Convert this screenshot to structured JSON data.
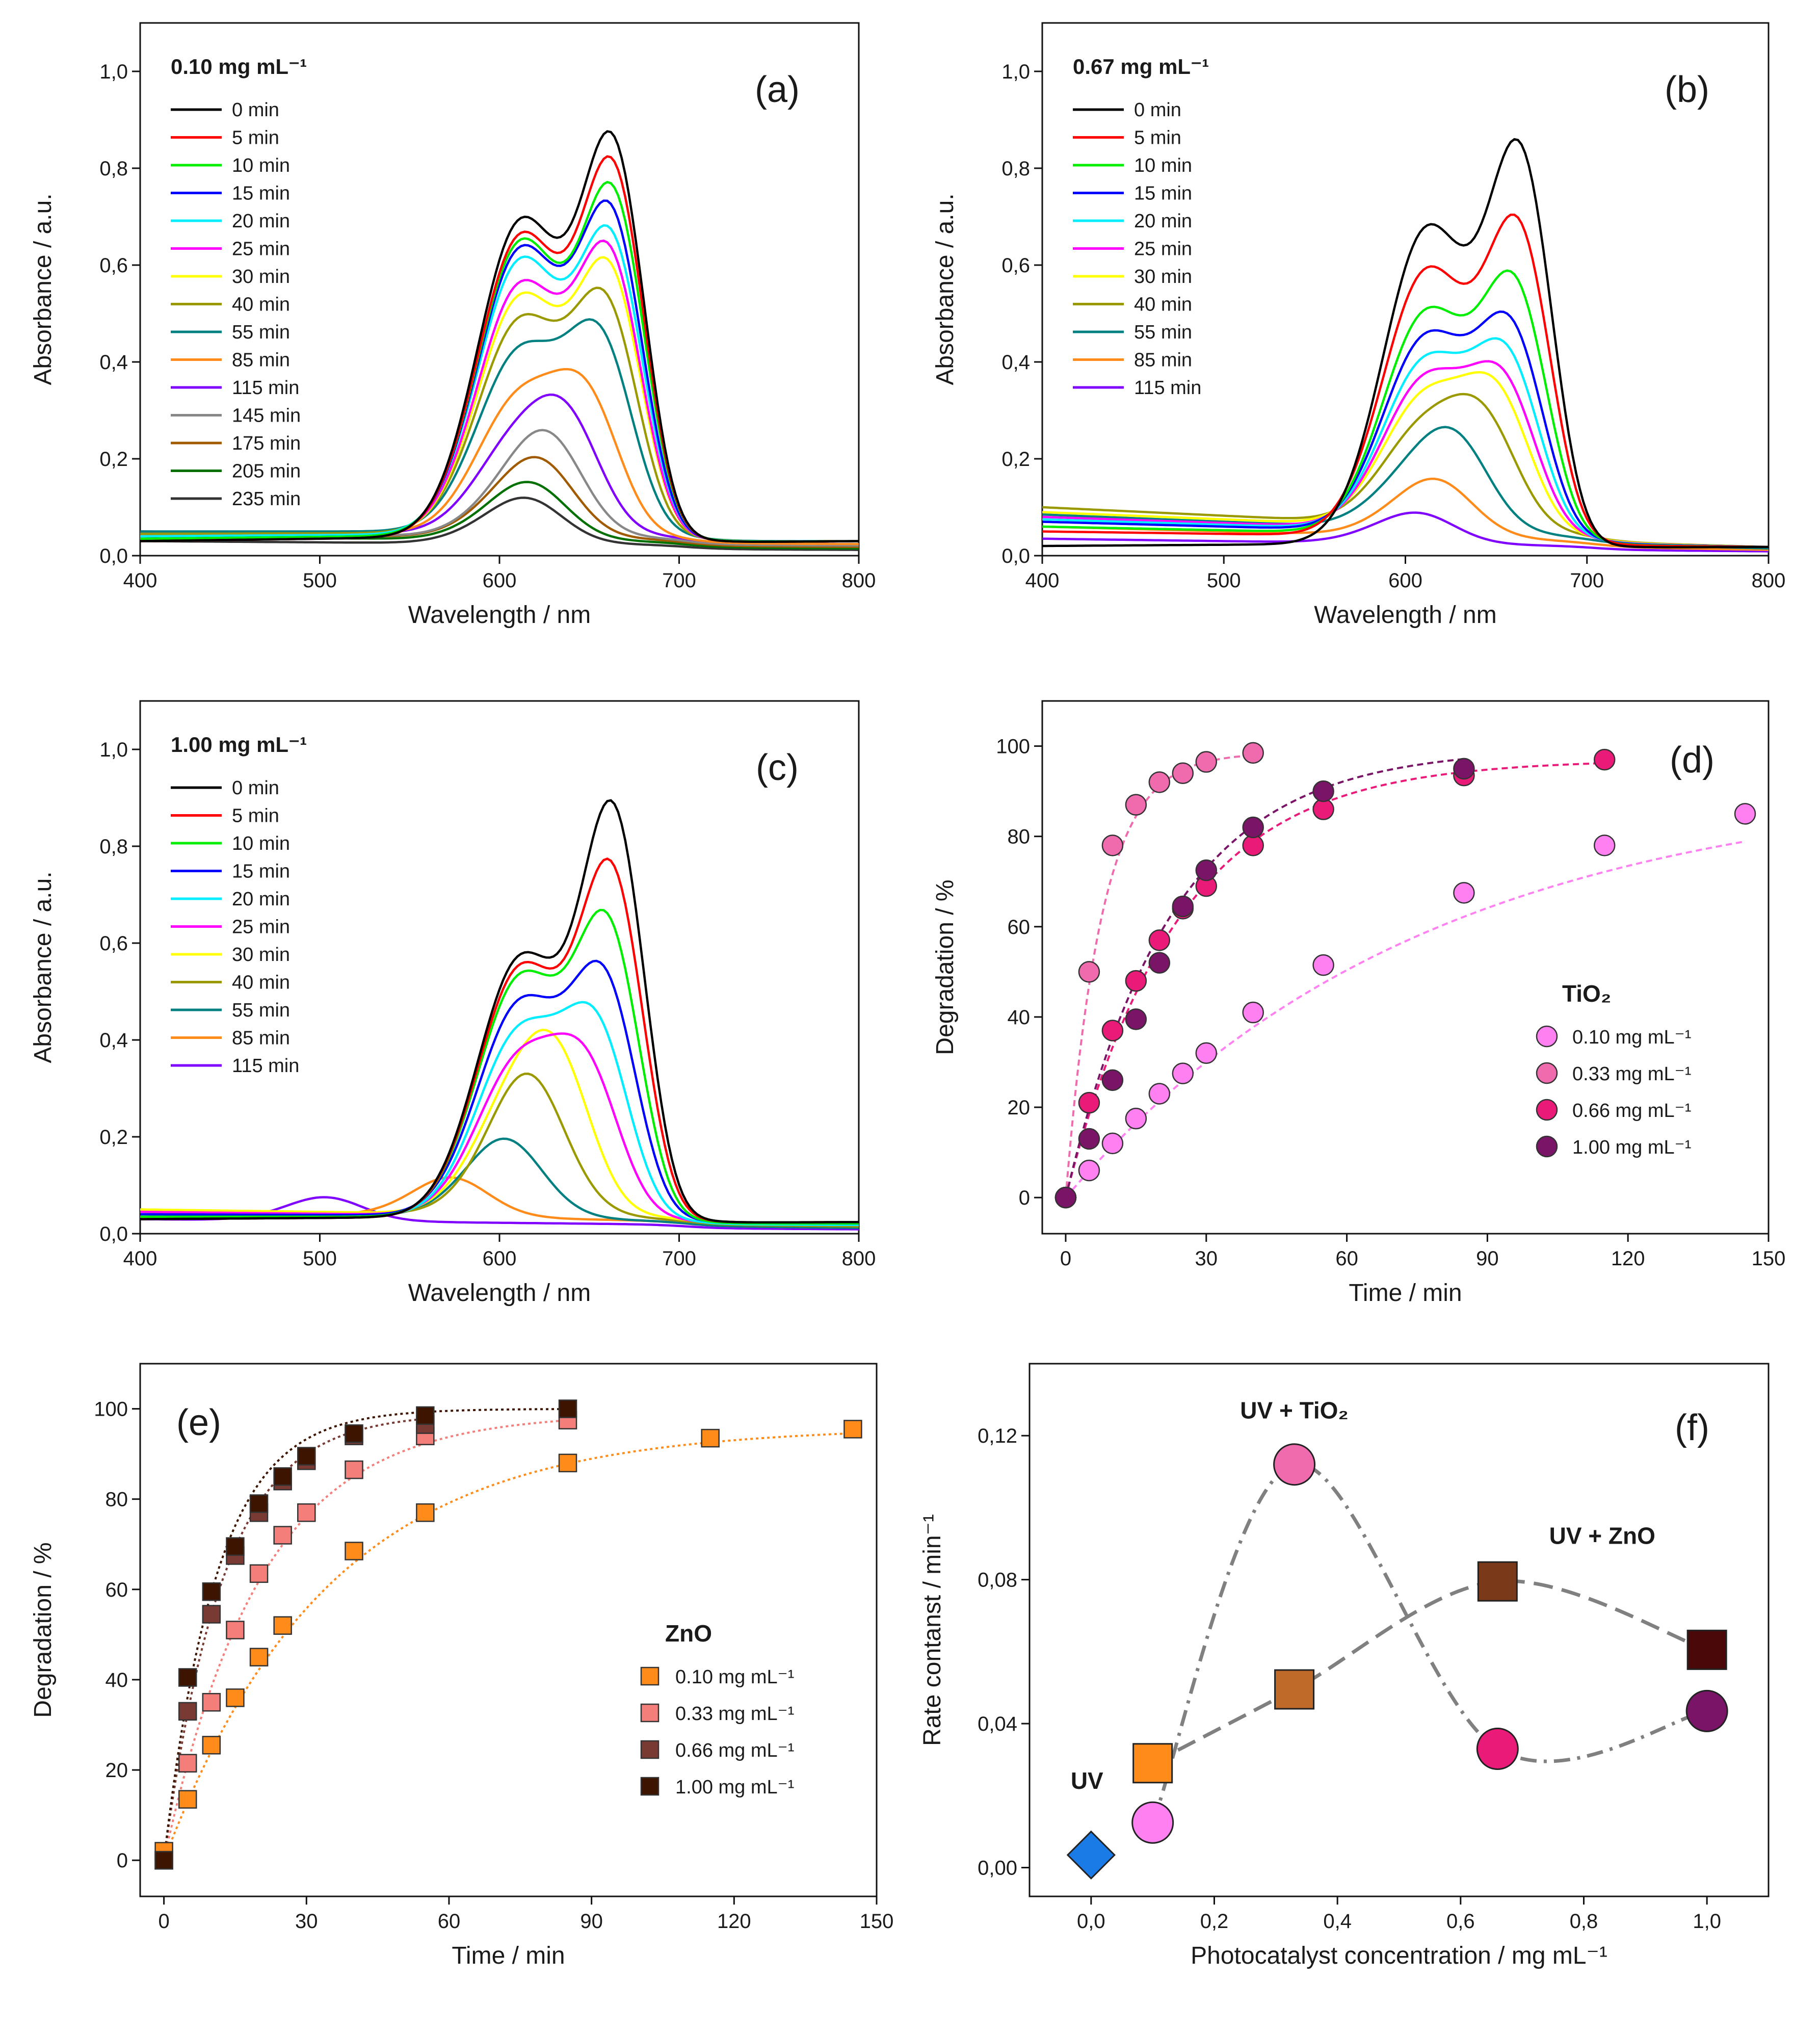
{
  "figure": {
    "background": "#ffffff"
  },
  "chart_data": [
    {
      "id": "a",
      "type": "line",
      "panel_label": "(a)",
      "title": "0.10 mg mL⁻¹",
      "xlabel": "Wavelength / nm",
      "ylabel": "Absorbance / a.u.",
      "xlim": [
        400,
        800
      ],
      "ylim": [
        0,
        1.1
      ],
      "xticks": [
        "400",
        "500",
        "600",
        "700",
        "800"
      ],
      "yticks": [
        "0,0",
        "0,2",
        "0,4",
        "0,6",
        "0,8",
        "1,0"
      ],
      "series": [
        {
          "name": "0 min",
          "color": "#000000",
          "p1": 0.645,
          "p2": 1.0,
          "c1": 612,
          "c2": 664,
          "base": 0.03,
          "tail": 0.05
        },
        {
          "name": "5 min",
          "color": "#ff0000",
          "p1": 0.615,
          "p2": 0.94,
          "c1": 612,
          "c2": 664,
          "base": 0.03,
          "tail": 0.05
        },
        {
          "name": "10 min",
          "color": "#00ee00",
          "p1": 0.6,
          "p2": 0.88,
          "c1": 612,
          "c2": 664,
          "base": 0.035,
          "tail": 0.05
        },
        {
          "name": "15 min",
          "color": "#0000ff",
          "p1": 0.585,
          "p2": 0.83,
          "c1": 612,
          "c2": 663,
          "base": 0.035,
          "tail": 0.05
        },
        {
          "name": "20 min",
          "color": "#00eeff",
          "p1": 0.56,
          "p2": 0.77,
          "c1": 612,
          "c2": 663,
          "base": 0.04,
          "tail": 0.05
        },
        {
          "name": "25 min",
          "color": "#ff00ff",
          "p1": 0.51,
          "p2": 0.72,
          "c1": 612,
          "c2": 662,
          "base": 0.04,
          "tail": 0.05
        },
        {
          "name": "30 min",
          "color": "#ffff00",
          "p1": 0.485,
          "p2": 0.68,
          "c1": 612,
          "c2": 662,
          "base": 0.04,
          "tail": 0.05
        },
        {
          "name": "40 min",
          "color": "#9a9a00",
          "p1": 0.435,
          "p2": 0.59,
          "c1": 612,
          "c2": 660,
          "base": 0.045,
          "tail": 0.05
        },
        {
          "name": "55 min",
          "color": "#008080",
          "p1": 0.37,
          "p2": 0.49,
          "c1": 612,
          "c2": 657,
          "base": 0.05,
          "tail": 0.05
        },
        {
          "name": "85 min",
          "color": "#ff8c1a",
          "p1": 0.28,
          "p2": 0.33,
          "c1": 612,
          "c2": 650,
          "base": 0.05,
          "tail": 0.04
        },
        {
          "name": "115 min",
          "color": "#8000ff",
          "p1": 0.2,
          "p2": 0.23,
          "c1": 612,
          "c2": 640,
          "base": 0.05,
          "tail": 0.04
        },
        {
          "name": "145 min",
          "color": "#888888",
          "p1": 0.13,
          "p2": 0.15,
          "c1": 615,
          "c2": 630,
          "base": 0.045,
          "tail": 0.035
        },
        {
          "name": "175 min",
          "color": "#a05a00",
          "p1": 0.1,
          "p2": 0.11,
          "c1": 612,
          "c2": 625,
          "base": 0.045,
          "tail": 0.03
        },
        {
          "name": "205 min",
          "color": "#007000",
          "p1": 0.075,
          "p2": 0.075,
          "c1": 610,
          "c2": 620,
          "base": 0.04,
          "tail": 0.025
        },
        {
          "name": "235 min",
          "color": "#333333",
          "p1": 0.058,
          "p2": 0.06,
          "c1": 608,
          "c2": 618,
          "base": 0.03,
          "tail": 0.02
        }
      ]
    },
    {
      "id": "b",
      "type": "line",
      "panel_label": "(b)",
      "title": "0.67 mg mL⁻¹",
      "xlabel": "Wavelength / nm",
      "ylabel": "Absorbance / a.u.",
      "xlim": [
        400,
        800
      ],
      "ylim": [
        0,
        1.1
      ],
      "xticks": [
        "400",
        "500",
        "600",
        "700",
        "800"
      ],
      "yticks": [
        "0,0",
        "0,2",
        "0,4",
        "0,6",
        "0,8",
        "1,0"
      ],
      "series": [
        {
          "name": "0 min",
          "color": "#000000",
          "p1": 0.645,
          "p2": 1.0,
          "c1": 612,
          "c2": 664,
          "base": 0.02,
          "tail": 0.03
        },
        {
          "name": "5 min",
          "color": "#ff0000",
          "p1": 0.545,
          "p2": 0.8,
          "c1": 612,
          "c2": 663,
          "base": 0.05,
          "tail": 0.03
        },
        {
          "name": "10 min",
          "color": "#00ee00",
          "p1": 0.455,
          "p2": 0.645,
          "c1": 612,
          "c2": 661,
          "base": 0.06,
          "tail": 0.03
        },
        {
          "name": "15 min",
          "color": "#0000ff",
          "p1": 0.4,
          "p2": 0.53,
          "c1": 612,
          "c2": 659,
          "base": 0.07,
          "tail": 0.03
        },
        {
          "name": "20 min",
          "color": "#00eeff",
          "p1": 0.35,
          "p2": 0.45,
          "c1": 612,
          "c2": 657,
          "base": 0.075,
          "tail": 0.03
        },
        {
          "name": "25 min",
          "color": "#ff00ff",
          "p1": 0.31,
          "p2": 0.38,
          "c1": 612,
          "c2": 655,
          "base": 0.08,
          "tail": 0.03
        },
        {
          "name": "30 min",
          "color": "#ffff00",
          "p1": 0.27,
          "p2": 0.33,
          "c1": 612,
          "c2": 652,
          "base": 0.09,
          "tail": 0.03
        },
        {
          "name": "40 min",
          "color": "#9a9a00",
          "p1": 0.205,
          "p2": 0.24,
          "c1": 612,
          "c2": 645,
          "base": 0.1,
          "tail": 0.03
        },
        {
          "name": "55 min",
          "color": "#008080",
          "p1": 0.13,
          "p2": 0.155,
          "c1": 610,
          "c2": 630,
          "base": 0.085,
          "tail": 0.025
        },
        {
          "name": "85 min",
          "color": "#ff8c1a",
          "p1": 0.075,
          "p2": 0.075,
          "c1": 610,
          "c2": 620,
          "base": 0.06,
          "tail": 0.02
        },
        {
          "name": "115 min",
          "color": "#8000ff",
          "p1": 0.04,
          "p2": 0.04,
          "c1": 600,
          "c2": 610,
          "base": 0.035,
          "tail": 0.015
        }
      ]
    },
    {
      "id": "c",
      "type": "line",
      "panel_label": "(c)",
      "title": "1.00 mg mL⁻¹",
      "xlabel": "Wavelength / nm",
      "ylabel": "Absorbance / a.u.",
      "xlim": [
        400,
        800
      ],
      "ylim": [
        0,
        1.1
      ],
      "xticks": [
        "400",
        "500",
        "600",
        "700",
        "800"
      ],
      "yticks": [
        "0,0",
        "0,2",
        "0,4",
        "0,6",
        "0,8",
        "1,0"
      ],
      "series": [
        {
          "name": "0 min",
          "color": "#000000",
          "p1": 0.53,
          "p2": 1.0,
          "c1": 612,
          "c2": 664,
          "base": 0.03,
          "tail": 0.04
        },
        {
          "name": "5 min",
          "color": "#ff0000",
          "p1": 0.51,
          "p2": 0.865,
          "c1": 612,
          "c2": 663,
          "base": 0.03,
          "tail": 0.04
        },
        {
          "name": "10 min",
          "color": "#00ee00",
          "p1": 0.49,
          "p2": 0.74,
          "c1": 612,
          "c2": 661,
          "base": 0.035,
          "tail": 0.035
        },
        {
          "name": "15 min",
          "color": "#0000ff",
          "p1": 0.435,
          "p2": 0.605,
          "c1": 612,
          "c2": 659,
          "base": 0.04,
          "tail": 0.035
        },
        {
          "name": "20 min",
          "color": "#00eeff",
          "p1": 0.38,
          "p2": 0.48,
          "c1": 612,
          "c2": 655,
          "base": 0.04,
          "tail": 0.03
        },
        {
          "name": "25 min",
          "color": "#ff00ff",
          "p1": 0.32,
          "p2": 0.36,
          "c1": 612,
          "c2": 650,
          "base": 0.045,
          "tail": 0.03
        },
        {
          "name": "30 min",
          "color": "#ffff00",
          "p1": 0.26,
          "p2": 0.275,
          "c1": 612,
          "c2": 635,
          "base": 0.05,
          "tail": 0.03
        },
        {
          "name": "40 min",
          "color": "#9a9a00",
          "p1": 0.18,
          "p2": 0.18,
          "c1": 612,
          "c2": 618,
          "base": 0.05,
          "tail": 0.025
        },
        {
          "name": "55 min",
          "color": "#008080",
          "p1": 0.1,
          "p2": 0.1,
          "c1": 600,
          "c2": 605,
          "base": 0.045,
          "tail": 0.02
        },
        {
          "name": "85 min",
          "color": "#ff8c1a",
          "p1": 0.05,
          "p2": 0.05,
          "c1": 570,
          "c2": 575,
          "base": 0.045,
          "tail": 0.02
        },
        {
          "name": "115 min",
          "color": "#8000ff",
          "p1": 0.03,
          "p2": 0.03,
          "c1": 500,
          "c2": 505,
          "base": 0.03,
          "tail": 0.015
        }
      ]
    },
    {
      "id": "d",
      "type": "scatter",
      "panel_label": "(d)",
      "xlabel": "Time / min",
      "ylabel": "Degradation / %",
      "xlim": [
        -5,
        150
      ],
      "ylim": [
        -8,
        110
      ],
      "xticks": [
        "0",
        "30",
        "60",
        "90",
        "120",
        "150"
      ],
      "yticks": [
        "0",
        "20",
        "40",
        "60",
        "80",
        "100"
      ],
      "legend_title": "TiO₂",
      "series": [
        {
          "name": "0.10 mg mL⁻¹",
          "color": "#ff80f0",
          "x": [
            0,
            5,
            10,
            15,
            20,
            25,
            30,
            40,
            55,
            85,
            115,
            145
          ],
          "y": [
            0,
            6,
            12,
            17.5,
            23,
            27.5,
            32,
            41,
            51.5,
            67.5,
            78,
            85
          ],
          "kfit": 0.013,
          "amax": 93
        },
        {
          "name": "0.33 mg mL⁻¹",
          "color": "#f06aae",
          "x": [
            0,
            5,
            10,
            15,
            20,
            25,
            30,
            40
          ],
          "y": [
            0,
            50,
            78,
            87,
            92,
            94,
            96.5,
            98.5
          ],
          "kfit": 0.13,
          "amax": 98.5
        },
        {
          "name": "0.66 mg mL⁻¹",
          "color": "#ea1a78",
          "x": [
            0,
            5,
            10,
            15,
            20,
            25,
            30,
            40,
            55,
            85,
            115
          ],
          "y": [
            0,
            21,
            37,
            48,
            57,
            64,
            69,
            78,
            86,
            93.5,
            97
          ],
          "kfit": 0.042,
          "amax": 97
        },
        {
          "name": "1.00 mg mL⁻¹",
          "color": "#7a1466",
          "x": [
            0,
            5,
            10,
            15,
            20,
            25,
            30,
            40,
            55,
            85
          ],
          "y": [
            0,
            13,
            26,
            39.5,
            52,
            64.5,
            72.5,
            82,
            90,
            95
          ],
          "kfit": 0.044,
          "amax": 99.5
        }
      ]
    },
    {
      "id": "e",
      "type": "scatter",
      "panel_label": "(e)",
      "xlabel": "Time / min",
      "ylabel": "Degradation / %",
      "xlim": [
        -5,
        150
      ],
      "ylim": [
        -8,
        110
      ],
      "xticks": [
        "0",
        "30",
        "60",
        "90",
        "120",
        "150"
      ],
      "yticks": [
        "0",
        "20",
        "40",
        "60",
        "80",
        "100"
      ],
      "legend_title": "ZnO",
      "series": [
        {
          "name": "0.10 mg mL⁻¹",
          "color": "#ff8c1a",
          "x": [
            0,
            5,
            10,
            15,
            20,
            25,
            40,
            55,
            85,
            115,
            145
          ],
          "y": [
            2,
            13.5,
            25.5,
            36,
            45,
            52,
            68.5,
            77,
            88,
            93.5,
            95.5
          ],
          "kfit": 0.029,
          "amax": 96
        },
        {
          "name": "0.33 mg mL⁻¹",
          "color": "#f47f7a",
          "x": [
            0,
            5,
            10,
            15,
            20,
            25,
            30,
            40,
            55,
            85
          ],
          "y": [
            0,
            21.5,
            35,
            51,
            63.5,
            72,
            77,
            86.5,
            94,
            97.5
          ],
          "kfit": 0.049,
          "amax": 99
        },
        {
          "name": "0.66 mg mL⁻¹",
          "color": "#7a3a34",
          "x": [
            0,
            5,
            10,
            15,
            20,
            25,
            30,
            40,
            55
          ],
          "y": [
            0,
            33,
            54.5,
            67.5,
            77,
            84,
            88.5,
            94,
            96.5
          ],
          "kfit": 0.08,
          "amax": 99
        },
        {
          "name": "1.00 mg mL⁻¹",
          "color": "#3c1400",
          "x": [
            0,
            5,
            10,
            15,
            20,
            25,
            30,
            40,
            55,
            85
          ],
          "y": [
            0,
            40.5,
            59.5,
            69.5,
            79,
            85,
            89.5,
            94.5,
            98.5,
            100
          ],
          "kfit": 0.09,
          "amax": 100
        }
      ]
    },
    {
      "id": "f",
      "type": "scatter",
      "panel_label": "(f)",
      "xlabel": "Photocatalyst concentration / mg mL⁻¹",
      "ylabel": "Rate contanst / min⁻¹",
      "xlim": [
        -0.1,
        1.1
      ],
      "ylim": [
        -0.008,
        0.14
      ],
      "xticks": [
        "0,0",
        "0,2",
        "0,4",
        "0,6",
        "0,8",
        "1,0"
      ],
      "yticks": [
        "0,00",
        "0,04",
        "0,08",
        "0,12"
      ],
      "annotations": [
        "UV",
        "UV + TiO₂",
        "UV + ZnO"
      ],
      "series": [
        {
          "name": "UV",
          "marker": "diamond",
          "points": [
            {
              "x": 0,
              "y": 0.0035,
              "color": "#1a7ae6"
            }
          ]
        },
        {
          "name": "UV + TiO₂",
          "marker": "circle",
          "points": [
            {
              "x": 0.1,
              "y": 0.0125,
              "color": "#ff80f0"
            },
            {
              "x": 0.33,
              "y": 0.112,
              "color": "#f06aae"
            },
            {
              "x": 0.66,
              "y": 0.033,
              "color": "#ea1a78"
            },
            {
              "x": 1.0,
              "y": 0.0435,
              "color": "#7a1466"
            }
          ]
        },
        {
          "name": "UV + ZnO",
          "marker": "square",
          "points": [
            {
              "x": 0.1,
              "y": 0.029,
              "color": "#ff8c1a"
            },
            {
              "x": 0.33,
              "y": 0.0495,
              "color": "#c06a2a"
            },
            {
              "x": 0.66,
              "y": 0.0795,
              "color": "#7a3a1a"
            },
            {
              "x": 1.0,
              "y": 0.0605,
              "color": "#4a0808"
            }
          ]
        }
      ]
    }
  ]
}
